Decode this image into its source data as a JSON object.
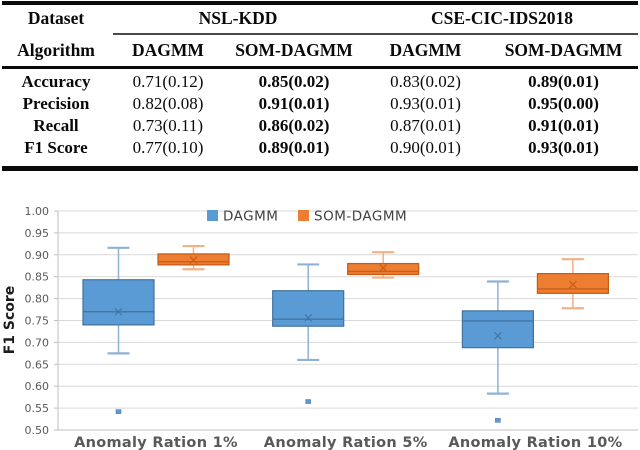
{
  "table": {
    "header": {
      "dataset": "Dataset",
      "algorithm": "Algorithm",
      "group1": "NSL-KDD",
      "group2": "CSE-CIC-IDS2018",
      "col1": "DAGMM",
      "col2": "SOM-DAGMM",
      "col3": "DAGMM",
      "col4": "SOM-DAGMM"
    },
    "rows": [
      {
        "label": "Accuracy",
        "v1": "0.71(0.12)",
        "v2": "0.85(0.02)",
        "v3": "0.83(0.02)",
        "v4": "0.89(0.01)"
      },
      {
        "label": "Precision",
        "v1": "0.82(0.08)",
        "v2": "0.91(0.01)",
        "v3": "0.93(0.01)",
        "v4": "0.95(0.00)"
      },
      {
        "label": "Recall",
        "v1": "0.73(0.11)",
        "v2": "0.86(0.02)",
        "v3": "0.87(0.01)",
        "v4": "0.91(0.01)"
      },
      {
        "label": "F1 Score",
        "v1": "0.77(0.10)",
        "v2": "0.89(0.01)",
        "v3": "0.90(0.01)",
        "v4": "0.93(0.01)"
      }
    ]
  },
  "chart_data": {
    "type": "boxplot",
    "ylabel": "F1 Score",
    "ylim": [
      0.5,
      1.0
    ],
    "ytick_step": 0.05,
    "yticks": [
      "1.00",
      "0.95",
      "0.90",
      "0.85",
      "0.80",
      "0.75",
      "0.70",
      "0.65",
      "0.60",
      "0.55",
      "0.50"
    ],
    "grid": true,
    "legend_position": "top-center",
    "categories": [
      "Anomaly Ration 1%",
      "Anomaly Ration 5%",
      "Anomaly Ration 10%"
    ],
    "series": [
      {
        "name": "DAGMM",
        "color": "#5B9BD5",
        "border": "#41719C",
        "whisker_color": "#8FB2D4",
        "boxes": [
          {
            "whisker_low": 0.675,
            "q1": 0.74,
            "median": 0.77,
            "q3": 0.843,
            "whisker_high": 0.916,
            "mean": 0.77,
            "outliers": [
              0.542
            ]
          },
          {
            "whisker_low": 0.66,
            "q1": 0.737,
            "median": 0.753,
            "q3": 0.818,
            "whisker_high": 0.878,
            "mean": 0.756,
            "outliers": [
              0.565
            ]
          },
          {
            "whisker_low": 0.583,
            "q1": 0.688,
            "median": 0.749,
            "q3": 0.772,
            "whisker_high": 0.839,
            "mean": 0.715,
            "outliers": [
              0.522
            ]
          }
        ]
      },
      {
        "name": "SOM-DAGMM",
        "color": "#ED7D31",
        "border": "#C55A11",
        "whisker_color": "#F2B183",
        "boxes": [
          {
            "whisker_low": 0.867,
            "q1": 0.877,
            "median": 0.884,
            "q3": 0.902,
            "whisker_high": 0.92,
            "mean": 0.888,
            "outliers": []
          },
          {
            "whisker_low": 0.848,
            "q1": 0.855,
            "median": 0.862,
            "q3": 0.88,
            "whisker_high": 0.906,
            "mean": 0.87,
            "outliers": []
          },
          {
            "whisker_low": 0.778,
            "q1": 0.812,
            "median": 0.822,
            "q3": 0.857,
            "whisker_high": 0.89,
            "mean": 0.832,
            "outliers": []
          }
        ]
      }
    ]
  }
}
